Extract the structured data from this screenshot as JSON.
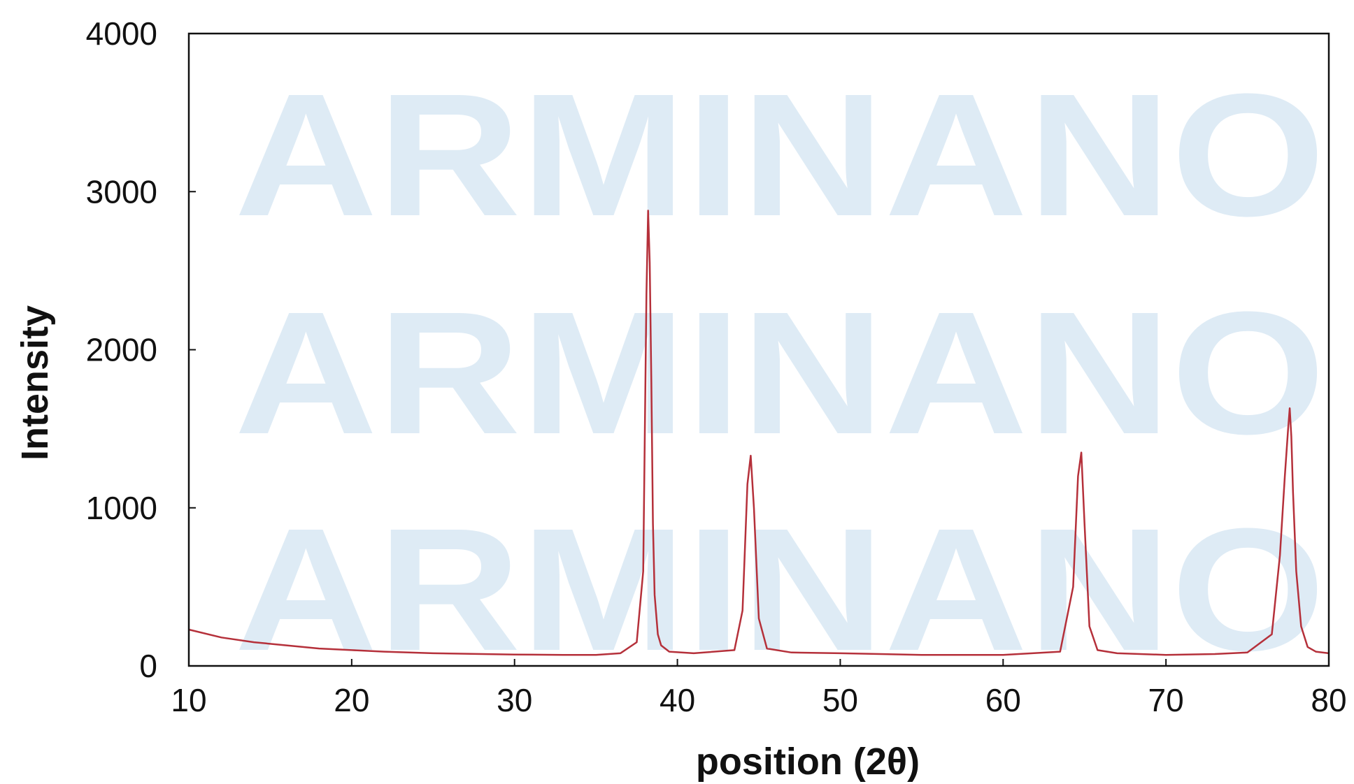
{
  "chart_data": {
    "type": "line",
    "title": "",
    "xlabel": "position (2θ)",
    "ylabel": "Intensity",
    "xlim": [
      10,
      80
    ],
    "ylim": [
      0,
      4000
    ],
    "xticks": [
      10,
      20,
      30,
      40,
      50,
      60,
      70,
      80
    ],
    "yticks": [
      0,
      1000,
      2000,
      3000,
      4000
    ],
    "grid": false,
    "legend": "none",
    "series": [
      {
        "color": "#b5303a",
        "x": [
          10,
          12,
          14,
          16,
          18,
          20,
          22,
          25,
          28,
          30,
          33,
          35,
          36.5,
          37.5,
          37.9,
          38.1,
          38.2,
          38.3,
          38.4,
          38.5,
          38.6,
          38.8,
          39.0,
          39.5,
          41,
          43.5,
          44.0,
          44.3,
          44.5,
          44.7,
          45.0,
          45.5,
          47,
          50,
          55,
          60,
          63.5,
          64.3,
          64.6,
          64.8,
          65.0,
          65.3,
          65.8,
          67,
          70,
          73,
          75,
          76.5,
          77.0,
          77.3,
          77.5,
          77.6,
          77.7,
          77.8,
          78.0,
          78.3,
          78.7,
          79.2,
          80
        ],
        "y": [
          230,
          180,
          150,
          130,
          110,
          100,
          90,
          80,
          75,
          72,
          70,
          70,
          80,
          150,
          600,
          2350,
          2880,
          2550,
          1800,
          900,
          450,
          200,
          130,
          90,
          80,
          100,
          350,
          1150,
          1330,
          1000,
          300,
          110,
          85,
          80,
          70,
          70,
          90,
          500,
          1200,
          1350,
          900,
          250,
          100,
          80,
          70,
          75,
          85,
          200,
          700,
          1200,
          1500,
          1630,
          1450,
          1100,
          600,
          250,
          120,
          90,
          80
        ]
      }
    ]
  },
  "watermark": {
    "lines": [
      "ARMINANO",
      "ARMINANO",
      "ARMINANO"
    ],
    "color": "#deebf5"
  }
}
